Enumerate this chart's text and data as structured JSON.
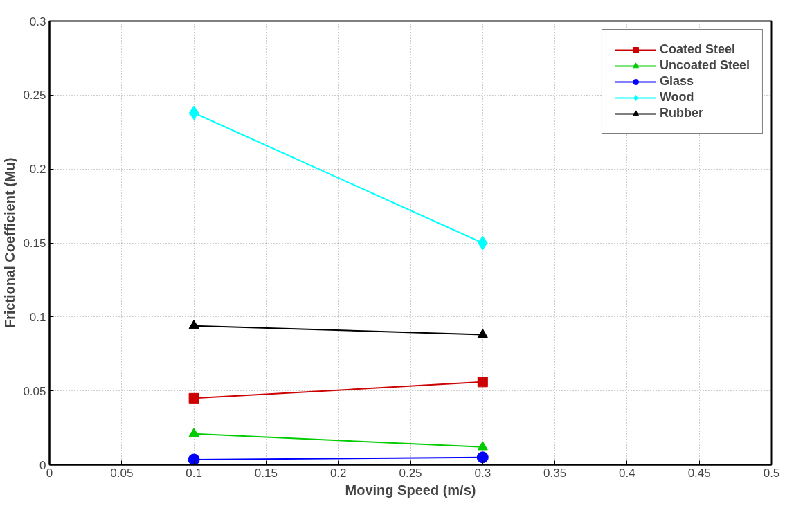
{
  "chart_data": {
    "type": "line",
    "xlabel": "Moving Speed (m/s)",
    "ylabel": "Frictional Coefficient (Mu)",
    "x": [
      0.1,
      0.3
    ],
    "series": [
      {
        "name": "Coated Steel",
        "color": "#cc0000",
        "marker": "square",
        "values": [
          0.045,
          0.056
        ]
      },
      {
        "name": "Uncoated Steel",
        "color": "#00cc00",
        "marker": "triangle",
        "values": [
          0.021,
          0.012
        ]
      },
      {
        "name": "Glass",
        "color": "#0000ff",
        "marker": "circle",
        "values": [
          0.0035,
          0.005
        ]
      },
      {
        "name": "Wood",
        "color": "#00ffff",
        "marker": "diamond",
        "values": [
          0.238,
          0.15
        ]
      },
      {
        "name": "Rubber",
        "color": "#000000",
        "marker": "triangle",
        "values": [
          0.094,
          0.088
        ]
      }
    ],
    "xlim": [
      0,
      0.5
    ],
    "xticks": [
      0,
      0.05,
      0.1,
      0.15,
      0.2,
      0.25,
      0.3,
      0.35,
      0.4,
      0.45,
      0.5
    ],
    "ylim": [
      0,
      0.3
    ],
    "yticks": [
      0,
      0.05,
      0.1,
      0.15,
      0.2,
      0.25,
      0.3
    ],
    "grid": true,
    "legend": "top right",
    "line_style": "solid"
  }
}
